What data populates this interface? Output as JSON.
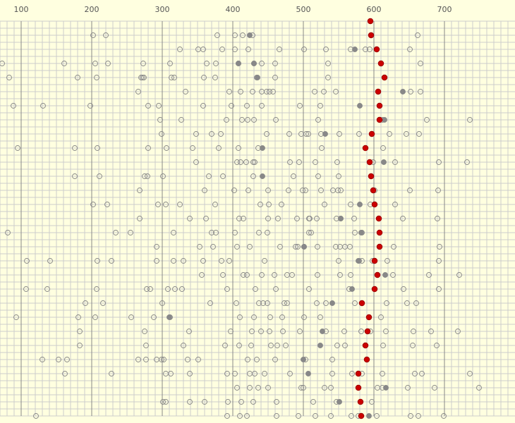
{
  "chart_data": {
    "type": "scatter",
    "title": "",
    "xlabel": "",
    "ylabel": "",
    "xlim": [
      70,
      790
    ],
    "x_ticks": [
      100,
      200,
      300,
      400,
      500,
      600,
      700
    ],
    "row_count": 28,
    "grid": true,
    "colors": {
      "background": "#ffffe0",
      "minor_grid": "#cccccc",
      "major_grid": "#888888",
      "open_marker_stroke": "#888888",
      "gray_marker": "#888888",
      "red_marker": "#cc0000",
      "red_marker_stroke": "#990000"
    },
    "rows": [
      {
        "open": [],
        "gray": [],
        "red": [
          595
        ]
      },
      {
        "open": [
          202,
          220,
          378,
          403,
          414,
          428,
          662
        ],
        "gray": [
          424
        ],
        "red": [
          596
        ]
      },
      {
        "open": [
          325,
          351,
          358,
          385,
          403,
          422,
          466,
          501,
          532,
          567,
          588,
          594,
          651
        ],
        "gray": [
          573
        ],
        "red": [
          604
        ]
      },
      {
        "open": [
          73,
          161,
          205,
          223,
          273,
          311,
          363,
          376,
          408,
          430,
          441,
          460,
          535,
          666
        ],
        "gray": [
          408,
          430
        ],
        "red": [
          610
        ]
      },
      {
        "open": [
          83,
          180,
          207,
          270,
          272,
          274,
          313,
          317,
          359,
          375,
          434,
          460,
          535
        ],
        "gray": [
          435
        ],
        "red": [
          615
        ]
      },
      {
        "open": [
          266,
          333,
          395,
          411,
          428,
          441,
          448,
          452,
          457,
          516,
          529,
          546,
          652,
          666
        ],
        "gray": [
          641
        ],
        "red": [
          606
        ]
      },
      {
        "open": [
          89,
          131,
          198,
          280,
          295,
          358,
          398,
          420,
          441,
          495,
          524
        ],
        "gray": [
          580
        ],
        "red": [
          608
        ]
      },
      {
        "open": [
          297,
          327,
          391,
          413,
          421,
          430,
          461,
          521,
          612,
          675,
          736
        ],
        "gray": [
          615
        ],
        "red": [
          608
        ]
      },
      {
        "open": [
          299,
          348,
          370,
          383,
          448,
          480,
          497,
          504,
          507,
          525,
          551,
          579,
          622,
          646,
          664
        ],
        "gray": [
          531
        ],
        "red": [
          597
        ]
      },
      {
        "open": [
          95,
          176,
          208,
          280,
          306,
          343,
          380,
          408,
          436,
          526,
          613
        ],
        "gray": [
          442
        ],
        "red": [
          588
        ]
      },
      {
        "open": [
          348,
          406,
          411,
          419,
          429,
          431,
          481,
          494,
          517,
          548,
          599,
          630,
          692,
          732
        ],
        "gray": [
          614
        ],
        "red": [
          594
        ]
      },
      {
        "open": [
          176,
          211,
          275,
          279,
          301,
          366,
          386,
          429,
          486,
          521,
          550
        ],
        "gray": [
          442
        ],
        "red": [
          596
        ]
      },
      {
        "open": [
          268,
          360,
          402,
          422,
          450,
          479,
          499,
          503,
          525,
          542,
          549,
          553,
          601,
          651,
          691
        ],
        "gray": [],
        "red": [
          599
        ]
      },
      {
        "open": [
          202,
          222,
          294,
          305,
          325,
          375,
          439,
          451,
          469,
          530,
          567,
          595,
          630
        ],
        "gray": [
          580
        ],
        "red": [
          601
        ]
      },
      {
        "open": [
          268,
          339,
          362,
          409,
          415,
          450,
          464,
          491,
          508,
          509,
          519,
          547,
          553,
          572,
          641,
          690
        ],
        "gray": [
          553
        ],
        "red": [
          607
        ]
      },
      {
        "open": [
          81,
          234,
          255,
          316,
          370,
          376,
          403,
          437,
          449,
          508,
          511,
          573,
          583
        ],
        "gray": [
          582
        ],
        "red": [
          608
        ]
      },
      {
        "open": [
          292,
          353,
          372,
          406,
          424,
          467,
          489,
          492,
          501,
          520,
          546,
          552,
          559,
          566,
          628,
          693
        ],
        "gray": [
          501
        ],
        "red": [
          608
        ]
      },
      {
        "open": [
          108,
          141,
          208,
          228,
          292,
          316,
          330,
          358,
          384,
          395,
          445,
          550,
          579,
          583,
          598,
          619,
          692
        ],
        "gray": [
          578
        ],
        "red": [
          601
        ]
      },
      {
        "open": [
          356,
          386,
          415,
          420,
          441,
          459,
          477,
          484,
          520,
          552,
          567,
          627,
          678,
          721
        ],
        "gray": [
          616
        ],
        "red": [
          605
        ]
      },
      {
        "open": [
          107,
          137,
          207,
          278,
          283,
          308,
          318,
          328,
          392,
          432,
          461,
          508,
          565,
          642,
          692
        ],
        "gray": [
          569
        ],
        "red": [
          601
        ]
      },
      {
        "open": [
          191,
          216,
          300,
          368,
          405,
          437,
          443,
          449,
          473,
          477,
          519,
          532,
          573,
          618,
          647,
          660
        ],
        "gray": [
          541
        ],
        "red": [
          583
        ]
      },
      {
        "open": [
          93,
          181,
          205,
          256,
          288,
          311,
          410,
          430,
          453,
          470,
          501,
          524,
          610
        ],
        "gray": [
          310
        ],
        "red": [
          593
        ]
      },
      {
        "open": [
          183,
          275,
          338,
          397,
          427,
          440,
          452,
          471,
          495,
          532,
          558,
          582,
          595,
          617,
          656,
          681,
          719
        ],
        "gray": [
          527
        ],
        "red": [
          591
        ]
      },
      {
        "open": [
          183,
          277,
          330,
          389,
          409,
          426,
          454,
          463,
          475,
          548,
          559,
          613,
          655,
          689
        ],
        "gray": [
          524
        ],
        "red": [
          588
        ]
      },
      {
        "open": [
          130,
          153,
          165,
          266,
          277,
          292,
          299,
          302,
          336,
          351,
          421,
          434,
          460,
          503,
          541
        ],
        "gray": [
          500
        ],
        "red": [
          590
        ]
      },
      {
        "open": [
          162,
          228,
          305,
          312,
          339,
          392,
          403,
          424,
          431,
          445,
          481,
          541,
          569,
          578,
          583,
          612,
          658,
          668,
          736
        ],
        "gray": [
          507
        ],
        "red": [
          578
        ]
      },
      {
        "open": [
          406,
          424,
          436,
          450,
          497,
          500,
          530,
          539,
          605,
          612,
          648,
          686,
          749
        ],
        "gray": [
          617
        ],
        "red": [
          578
        ]
      },
      {
        "open": [
          301,
          305,
          339,
          360,
          393,
          412,
          429,
          462,
          514,
          547,
          597
        ],
        "gray": [
          551
        ],
        "red": [
          581
        ]
      }
    ],
    "bottom_row": {
      "open": [
        121,
        392,
        410,
        420,
        462,
        493,
        517,
        539,
        568,
        578,
        604,
        652,
        663,
        699
      ],
      "gray": [
        593
      ],
      "red": [
        582
      ]
    }
  }
}
